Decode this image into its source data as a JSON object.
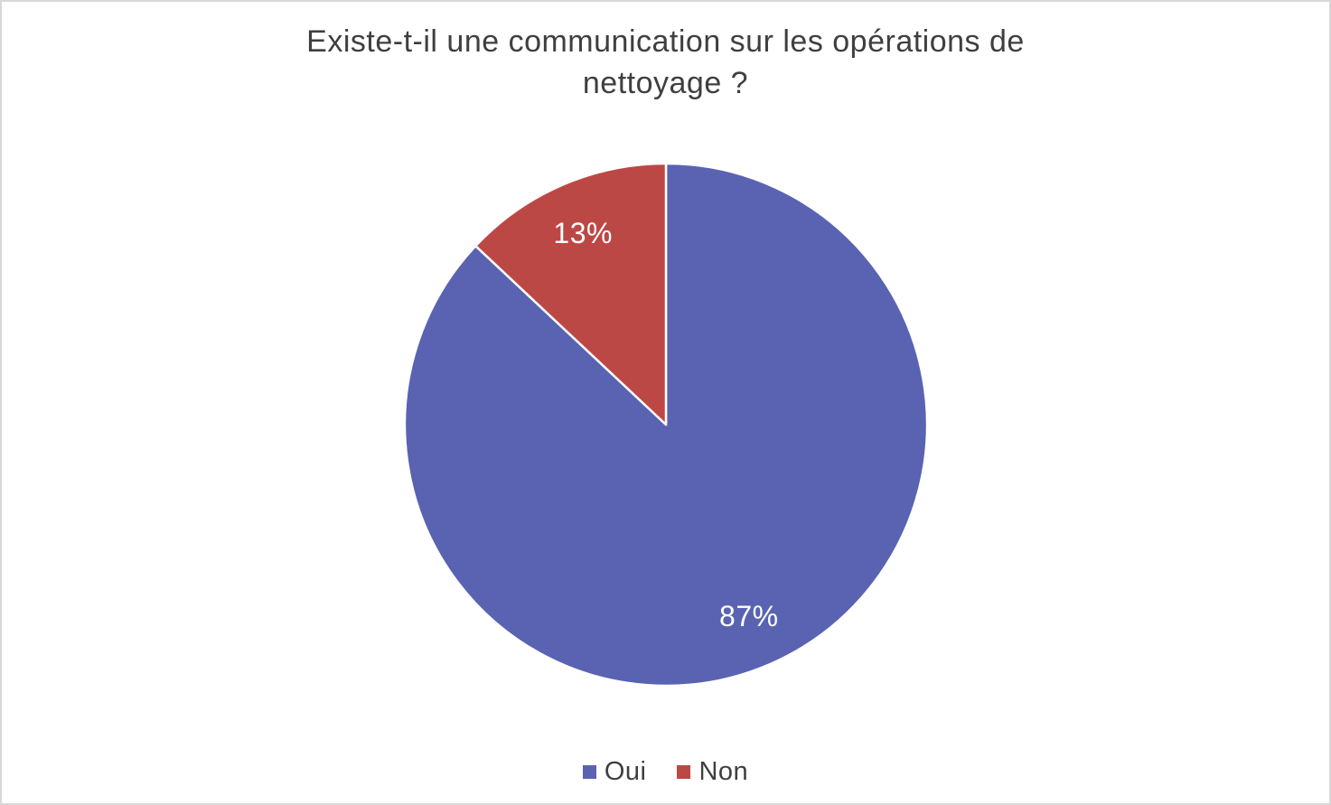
{
  "title_lines": {
    "line1": "Existe-t-il une communication sur les opérations de",
    "line2": "nettoyage ?"
  },
  "legend": {
    "items": [
      {
        "label": "Oui",
        "color": "#5963b2"
      },
      {
        "label": "Non",
        "color": "#bc4845"
      }
    ]
  },
  "chart_data": {
    "type": "pie",
    "title": "Existe-t-il une communication sur les opérations de nettoyage ?",
    "categories": [
      "Oui",
      "Non"
    ],
    "values": [
      87,
      13
    ],
    "labels": [
      "87%",
      "13%"
    ],
    "colors": [
      "#5963b2",
      "#bc4845"
    ],
    "label_color": "#ffffff",
    "start_angle_deg": -90,
    "direction": "clockwise",
    "legend_position": "bottom",
    "slice_border_color": "#ffffff"
  }
}
